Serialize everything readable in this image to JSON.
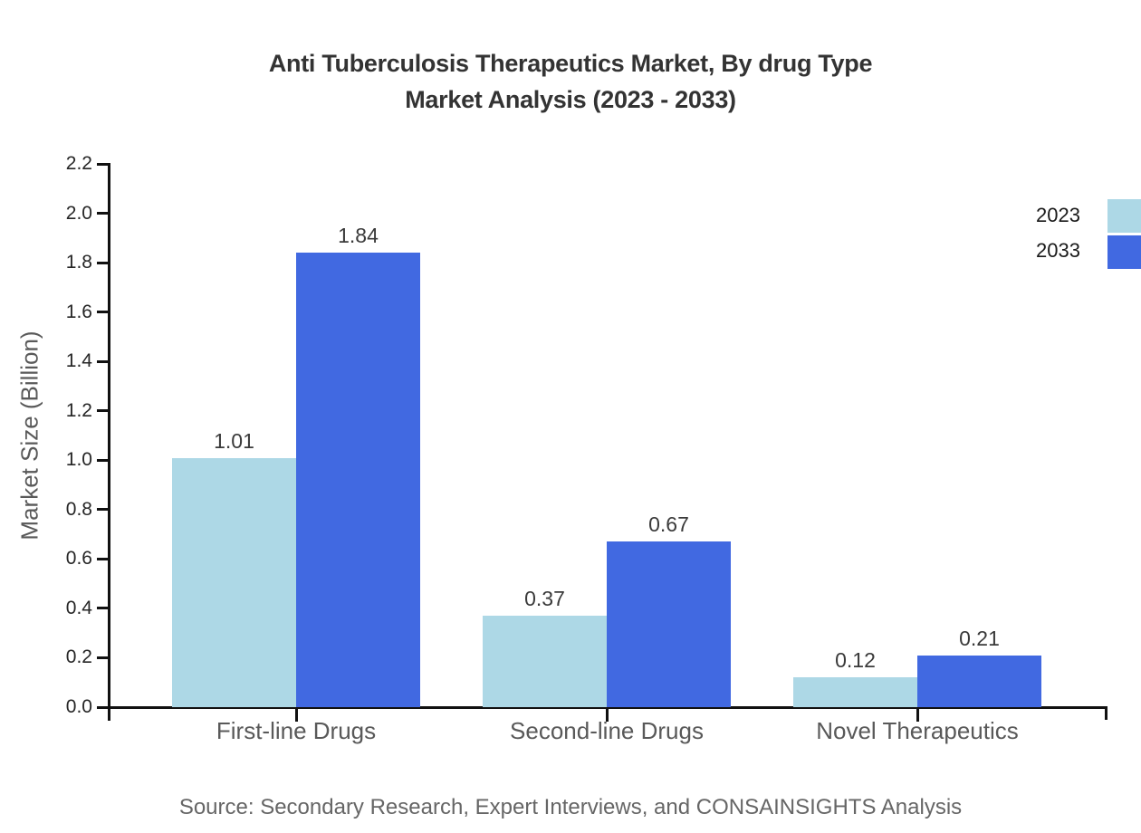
{
  "chart_data": {
    "type": "bar",
    "title_line1": "Anti Tuberculosis Therapeutics Market, By drug Type",
    "title_line2": "Market Analysis (2023 - 2033)",
    "ylabel": "Market Size (Billion)",
    "xlabel": "",
    "categories": [
      "First-line Drugs",
      "Second-line Drugs",
      "Novel Therapeutics"
    ],
    "series": [
      {
        "name": "2023",
        "color": "#ADD8E6",
        "values": [
          1.01,
          0.37,
          0.12
        ]
      },
      {
        "name": "2033",
        "color": "#4169E1",
        "values": [
          1.84,
          0.67,
          0.21
        ]
      }
    ],
    "value_labels": [
      [
        "1.01",
        "0.37",
        "0.12"
      ],
      [
        "1.84",
        "0.67",
        "0.21"
      ]
    ],
    "ylim": [
      0.0,
      2.2
    ],
    "yticks": [
      "0.0",
      "0.2",
      "0.4",
      "0.6",
      "0.8",
      "1.0",
      "1.2",
      "1.4",
      "1.6",
      "1.8",
      "2.0",
      "2.2"
    ],
    "grid": false,
    "legend_position": "top-right"
  },
  "source_note": "Source: Secondary Research, Expert Interviews, and CONSAINSIGHTS Analysis"
}
